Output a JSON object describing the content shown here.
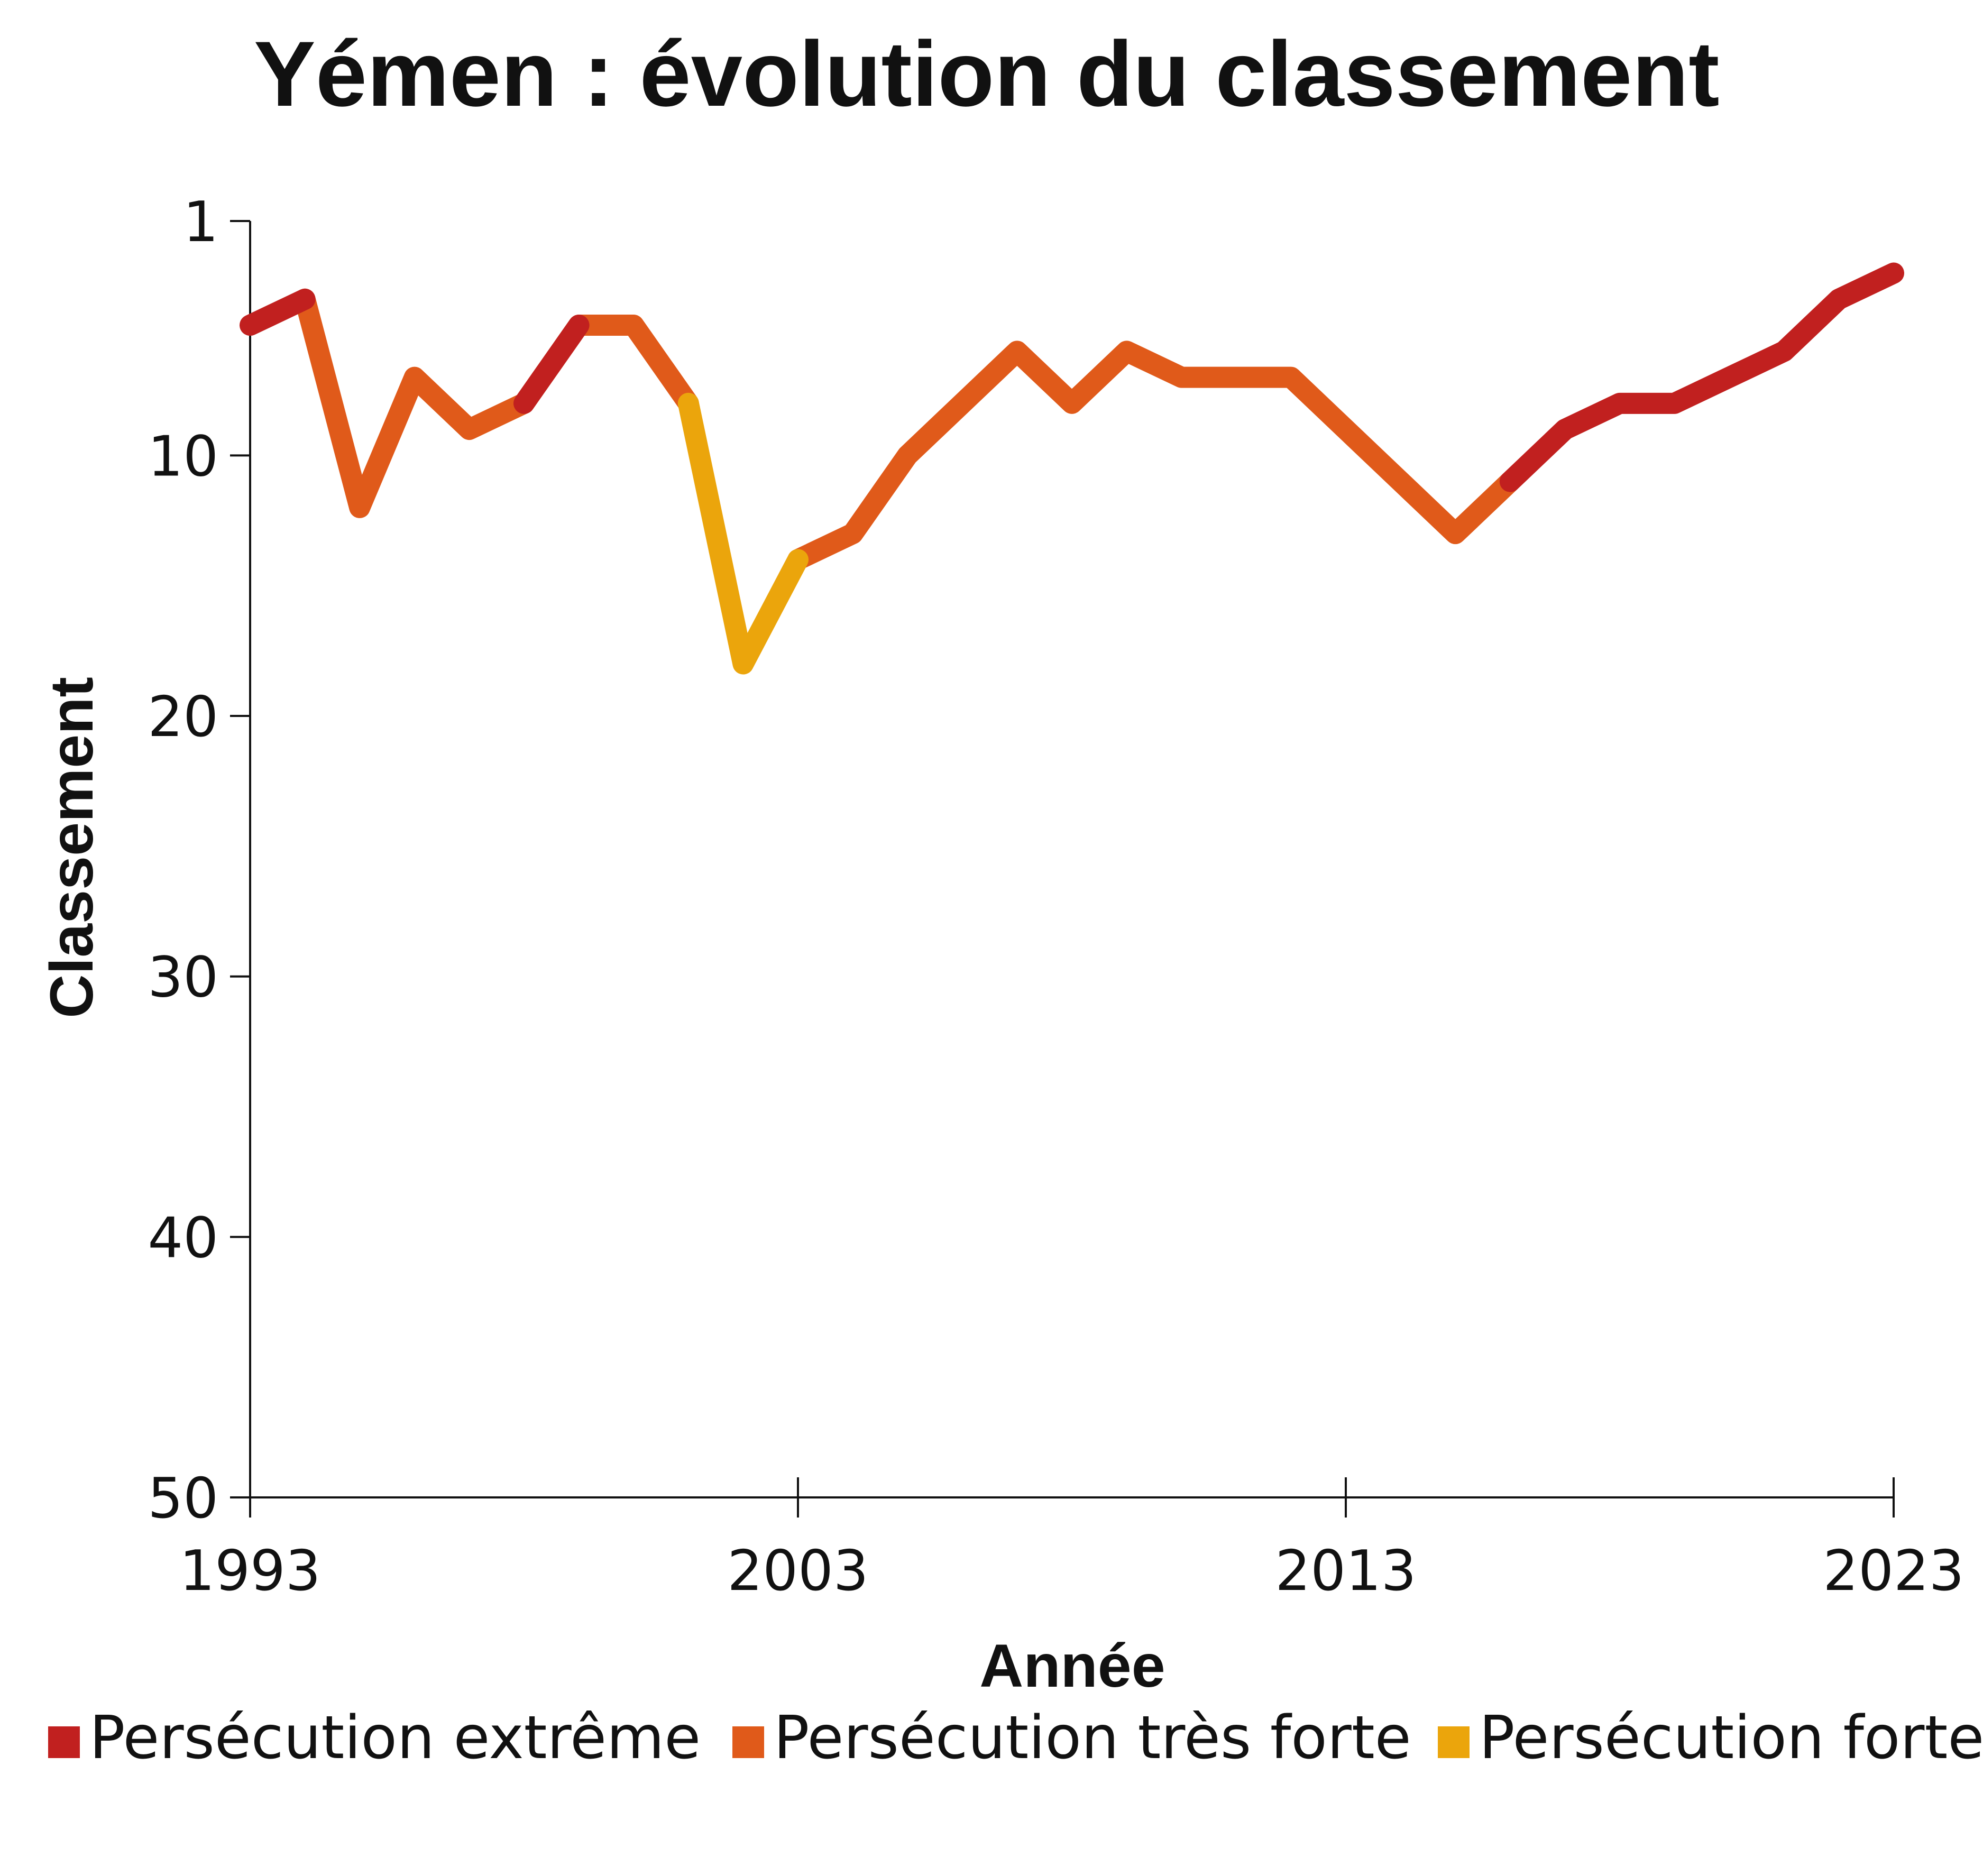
{
  "chart_data": {
    "type": "line",
    "title": "Yémen : évolution du classement",
    "x_label": "Année",
    "y_label": "Classement",
    "x": [
      1993,
      1994,
      1995,
      1996,
      1997,
      1998,
      1999,
      2000,
      2001,
      2002,
      2003,
      2004,
      2005,
      2006,
      2007,
      2008,
      2009,
      2010,
      2011,
      2012,
      2013,
      2014,
      2015,
      2016,
      2017,
      2018,
      2019,
      2020,
      2021,
      2022,
      2023
    ],
    "series": [
      {
        "name": "Persécution extrême",
        "color": "#c1201f",
        "values": [
          5,
          4,
          null,
          null,
          null,
          8,
          5,
          null,
          null,
          null,
          null,
          null,
          null,
          null,
          null,
          null,
          null,
          null,
          null,
          null,
          null,
          null,
          null,
          11,
          9,
          8,
          8,
          7,
          6,
          4,
          3
        ]
      },
      {
        "name": "Persécution très forte",
        "color": "#e05a1a",
        "values": [
          null,
          4,
          12,
          7,
          9,
          8,
          5,
          5,
          8,
          null,
          14,
          13,
          10,
          8,
          6,
          8,
          6,
          7,
          7,
          7,
          9,
          11,
          13,
          11,
          null,
          null,
          null,
          null,
          null,
          null,
          null
        ]
      },
      {
        "name": "Persécution forte",
        "color": "#eba50c",
        "values": [
          null,
          null,
          null,
          null,
          null,
          null,
          null,
          null,
          8,
          18,
          14,
          null,
          null,
          null,
          null,
          null,
          null,
          null,
          null,
          null,
          null,
          null,
          null,
          null,
          null,
          null,
          null,
          null,
          null,
          null,
          null
        ]
      }
    ],
    "xlim": [
      1993,
      2023
    ],
    "xticks": [
      1993,
      2003,
      2013,
      2023
    ],
    "ylim": [
      1,
      50
    ],
    "yticks": [
      1,
      10,
      20,
      30,
      40,
      50
    ],
    "y_inverted": true,
    "grid": false,
    "legend": "bottom"
  }
}
